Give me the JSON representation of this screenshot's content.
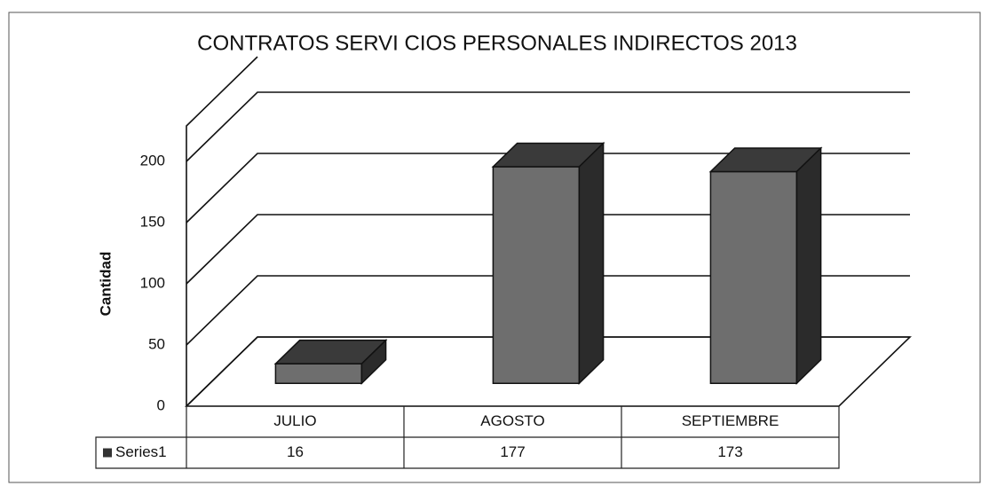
{
  "chart_data": {
    "type": "bar3d",
    "title": "CONTRATOS SERVI CIOS PERSONALES INDIRECTOS 2013",
    "y_label": "Cantidad",
    "categories": [
      "JULIO",
      "AGOSTO",
      "SEPTIEMBRE"
    ],
    "series": [
      {
        "name": "Series1",
        "color": "#6e6e6e",
        "values": [
          16,
          177,
          173
        ]
      }
    ],
    "ylim": [
      0,
      200
    ],
    "yticks": [
      0,
      50,
      100,
      150,
      200
    ],
    "grid": true,
    "data_table": true
  }
}
